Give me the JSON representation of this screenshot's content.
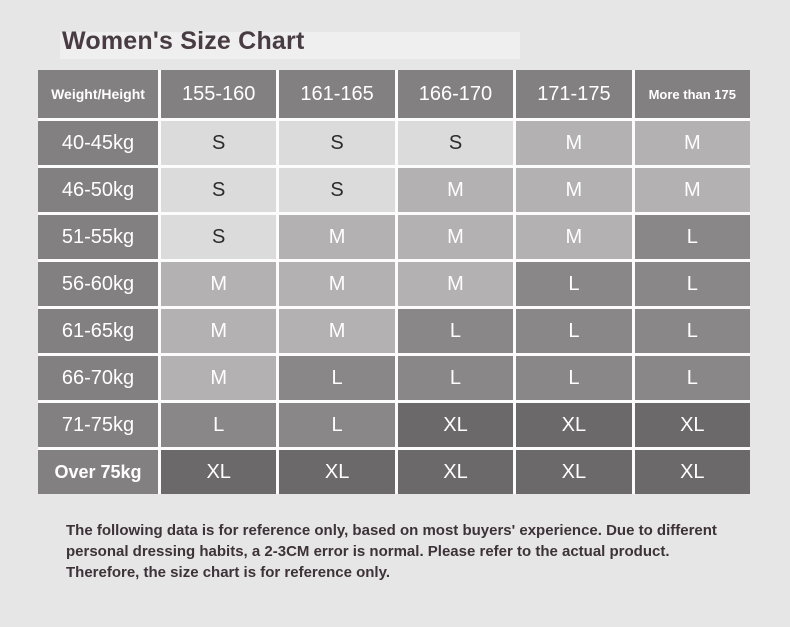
{
  "title": "Women's Size Chart",
  "chart_data": {
    "type": "table",
    "title": "Women's Size Chart",
    "corner_label": "Weight/Height",
    "columns": [
      "155-160",
      "161-165",
      "166-170",
      "171-175",
      "More than 175"
    ],
    "rows": [
      {
        "label": "40-45kg",
        "values": [
          "S",
          "S",
          "S",
          "M",
          "M"
        ]
      },
      {
        "label": "46-50kg",
        "values": [
          "S",
          "S",
          "M",
          "M",
          "M"
        ]
      },
      {
        "label": "51-55kg",
        "values": [
          "S",
          "M",
          "M",
          "M",
          "L"
        ]
      },
      {
        "label": "56-60kg",
        "values": [
          "M",
          "M",
          "M",
          "L",
          "L"
        ]
      },
      {
        "label": "61-65kg",
        "values": [
          "M",
          "M",
          "L",
          "L",
          "L"
        ]
      },
      {
        "label": "66-70kg",
        "values": [
          "M",
          "L",
          "L",
          "L",
          "L"
        ]
      },
      {
        "label": "71-75kg",
        "values": [
          "L",
          "L",
          "XL",
          "XL",
          "XL"
        ]
      },
      {
        "label": "Over 75kg",
        "values": [
          "XL",
          "XL",
          "XL",
          "XL",
          "XL"
        ]
      }
    ]
  },
  "colors": {
    "page_bg": "#e7e6e6",
    "header_bg": "#838081",
    "header_text": "#ffffff",
    "gridline": "#fcfcfc",
    "title_text": "#483c42",
    "disclaimer_text": "#3c3237",
    "sizes": {
      "S": {
        "bg": "#dcdbdb",
        "text": "#2b2b2b"
      },
      "M": {
        "bg": "#b3b1b2",
        "text": "#ffffff"
      },
      "L": {
        "bg": "#8a8788",
        "text": "#ffffff"
      },
      "XL": {
        "bg": "#6c696a",
        "text": "#ffffff"
      }
    }
  },
  "footer": {
    "text": "The following data is for reference only, based on most buyers' experience. Due to different personal dressing habits, a 2-3CM error is normal. Please refer to the actual product. Therefore, the size chart is for reference only."
  }
}
